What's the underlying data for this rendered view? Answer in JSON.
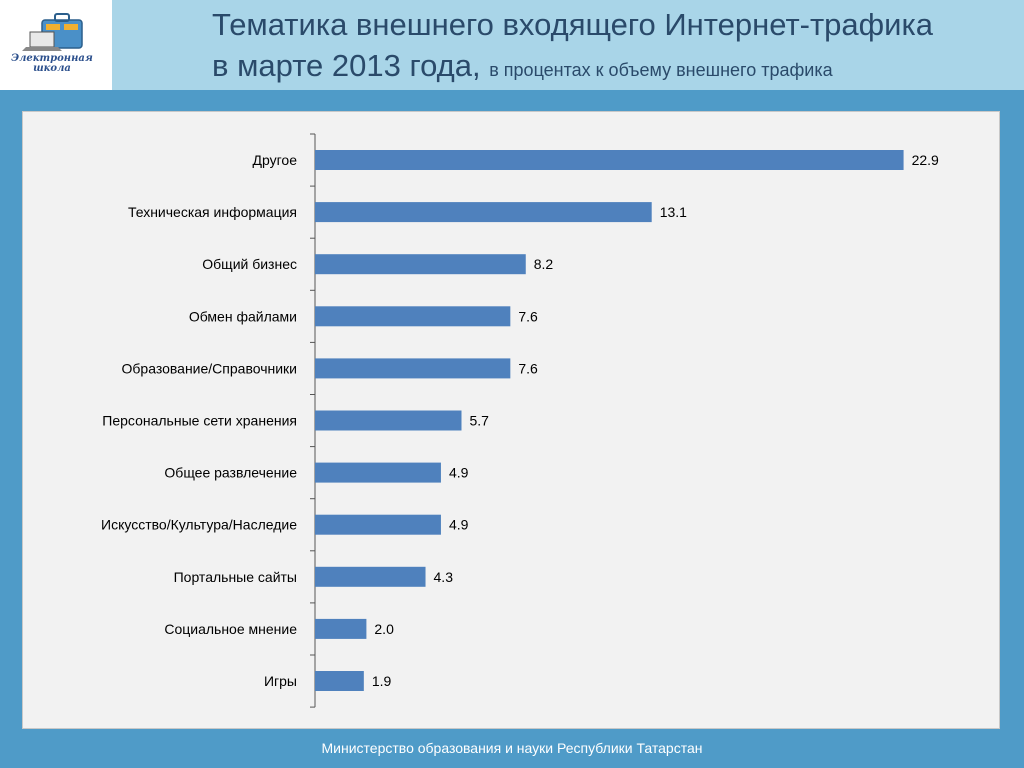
{
  "header": {
    "title_line1": "Тематика внешнего входящего Интернет-трафика",
    "title_line2": "в марте 2013 года,",
    "subtitle": "в процентах к объему внешнего трафика",
    "logo_text_line1": "Электронная",
    "logo_text_line2": "школа",
    "logo_icon": "briefcase-laptop-icon"
  },
  "footer": {
    "text": "Министерство образования и науки  Республики Татарстан"
  },
  "colors": {
    "bar": "#4f81bd",
    "header_bg": "#a9d5e8",
    "page_bg": "#4f9bc8"
  },
  "chart_data": {
    "type": "bar",
    "orientation": "horizontal",
    "categories": [
      "Другое",
      "Техническая информация",
      "Общий бизнес",
      "Обмен файлами",
      "Образование/Справочники",
      "Персональные сети хранения",
      "Общее развлечение",
      "Искусство/Культура/Наследие",
      "Портальные сайты",
      "Социальное мнение",
      "Игры"
    ],
    "values": [
      22.9,
      13.1,
      8.2,
      7.6,
      7.6,
      5.7,
      4.9,
      4.9,
      4.3,
      2.0,
      1.9
    ],
    "value_labels": [
      "22.9",
      "13.1",
      "8.2",
      "7.6",
      "7.6",
      "5.7",
      "4.9",
      "4.9",
      "4.3",
      "2.0",
      "1.9"
    ],
    "grid": false,
    "legend": "none",
    "xlim": [
      0,
      23.5
    ]
  }
}
